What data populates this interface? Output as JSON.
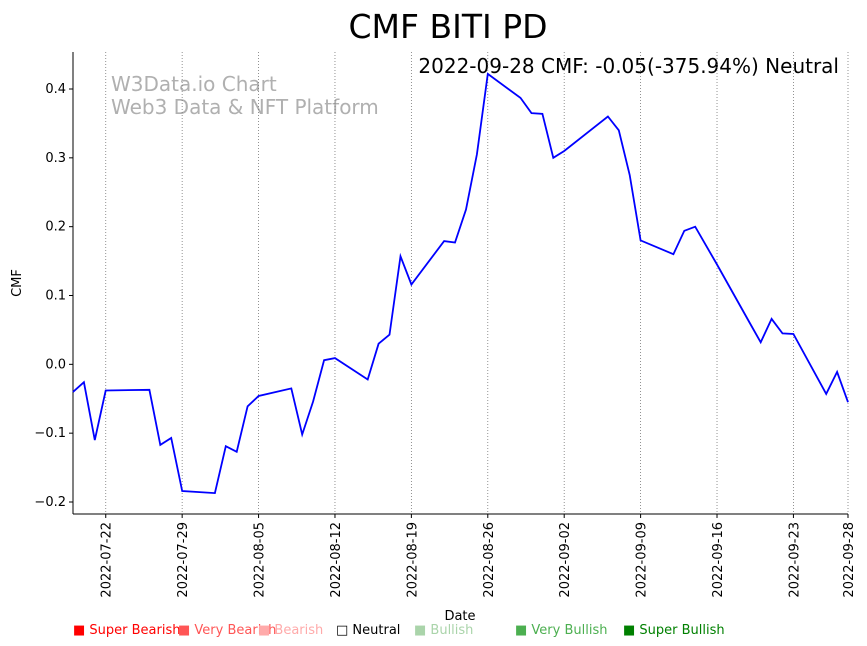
{
  "chart_data": {
    "type": "line",
    "title": "CMF BITI PD",
    "annotation": "2022-09-28 CMF: -0.05(-375.94%) Neutral",
    "watermark": [
      "W3Data.io Chart",
      "Web3 Data & NFT Platform"
    ],
    "xlabel": "Date",
    "ylabel": "CMF",
    "ylim": [
      -0.22,
      0.455
    ],
    "xrange": [
      "2022-07-19",
      "2022-09-28"
    ],
    "yticks": [
      -0.2,
      -0.1,
      0.0,
      0.1,
      0.2,
      0.3,
      0.4
    ],
    "ytick_labels": [
      "−0.2",
      "−0.1",
      "0.0",
      "0.1",
      "0.2",
      "0.3",
      "0.4"
    ],
    "xticks": [
      "2022-07-22",
      "2022-07-29",
      "2022-08-05",
      "2022-08-12",
      "2022-08-19",
      "2022-08-26",
      "2022-09-02",
      "2022-09-09",
      "2022-09-16",
      "2022-09-23",
      "2022-09-28"
    ],
    "grid": "vertical-dotted",
    "line_color": "#0000ff",
    "series": [
      {
        "name": "CMF",
        "points": [
          [
            "2022-07-19",
            -0.04
          ],
          [
            "2022-07-20",
            -0.026
          ],
          [
            "2022-07-21",
            -0.11
          ],
          [
            "2022-07-22",
            -0.038
          ],
          [
            "2022-07-26",
            -0.037
          ],
          [
            "2022-07-27",
            -0.117
          ],
          [
            "2022-07-28",
            -0.107
          ],
          [
            "2022-07-29",
            -0.184
          ],
          [
            "2022-08-01",
            -0.187
          ],
          [
            "2022-08-02",
            -0.119
          ],
          [
            "2022-08-03",
            -0.127
          ],
          [
            "2022-08-04",
            -0.061
          ],
          [
            "2022-08-05",
            -0.046
          ],
          [
            "2022-08-08",
            -0.035
          ],
          [
            "2022-08-09",
            -0.102
          ],
          [
            "2022-08-10",
            -0.054
          ],
          [
            "2022-08-11",
            0.006
          ],
          [
            "2022-08-12",
            0.009
          ],
          [
            "2022-08-15",
            -0.022
          ],
          [
            "2022-08-16",
            0.03
          ],
          [
            "2022-08-17",
            0.043
          ],
          [
            "2022-08-18",
            0.157
          ],
          [
            "2022-08-19",
            0.116
          ],
          [
            "2022-08-22",
            0.179
          ],
          [
            "2022-08-23",
            0.177
          ],
          [
            "2022-08-24",
            0.225
          ],
          [
            "2022-08-25",
            0.305
          ],
          [
            "2022-08-26",
            0.422
          ],
          [
            "2022-08-29",
            0.387
          ],
          [
            "2022-08-30",
            0.365
          ],
          [
            "2022-08-31",
            0.364
          ],
          [
            "2022-09-01",
            0.3
          ],
          [
            "2022-09-02",
            0.31
          ],
          [
            "2022-09-06",
            0.36
          ],
          [
            "2022-09-07",
            0.34
          ],
          [
            "2022-09-08",
            0.275
          ],
          [
            "2022-09-09",
            0.18
          ],
          [
            "2022-09-12",
            0.16
          ],
          [
            "2022-09-13",
            0.194
          ],
          [
            "2022-09-14",
            0.2
          ],
          [
            "2022-09-16",
            0.145
          ],
          [
            "2022-09-19",
            0.06
          ],
          [
            "2022-09-20",
            0.032
          ],
          [
            "2022-09-21",
            0.066
          ],
          [
            "2022-09-22",
            0.045
          ],
          [
            "2022-09-23",
            0.044
          ],
          [
            "2022-09-26",
            -0.043
          ],
          [
            "2022-09-27",
            -0.011
          ],
          [
            "2022-09-28",
            -0.055
          ]
        ]
      }
    ],
    "legend": [
      {
        "label": "Super Bearish",
        "color": "#ff0000",
        "marker": "■"
      },
      {
        "label": "Very Bearish",
        "color": "#ff5555",
        "marker": "■"
      },
      {
        "label": "Bearish",
        "color": "#ffaaaa",
        "marker": "■"
      },
      {
        "label": "Neutral",
        "color": "#000000",
        "marker": "□"
      },
      {
        "label": "Bullish",
        "color": "#aad4aa",
        "marker": "■"
      },
      {
        "label": "Very Bullish",
        "color": "#4caf50",
        "marker": "■"
      },
      {
        "label": "Super Bullish",
        "color": "#008000",
        "marker": "■"
      }
    ]
  }
}
